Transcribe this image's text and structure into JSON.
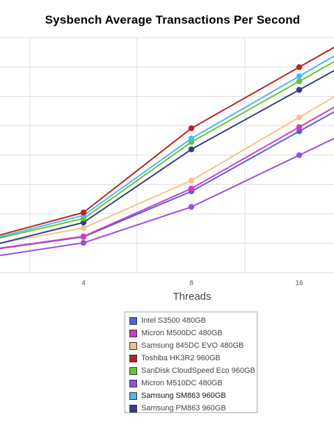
{
  "chart_data": {
    "type": "line",
    "title": "Sysbench Average Transactions Per Second",
    "xlabel": "Threads",
    "ylabel": "",
    "x": [
      2,
      4,
      8,
      16
    ],
    "x_tick_labels": [
      "4",
      "8",
      "16"
    ],
    "grid": true,
    "legend_placement": "bottom",
    "series": [
      {
        "name": "Intel S3500 480GB",
        "color": "#4f63e0",
        "values": [
          47.3,
          61.6,
          105.2,
          162.8
        ]
      },
      {
        "name": "Micron M500DC 480GB",
        "color": "#d33bc4",
        "values": [
          47.5,
          62.1,
          107.9,
          166.8
        ]
      },
      {
        "name": "Samsung 845DC EVO 480GB",
        "color": "#f2c38a",
        "values": [
          51.6,
          70.1,
          115.6,
          176.2
        ]
      },
      {
        "name": "Toshiba HK3R2 960GB",
        "color": "#b82424",
        "values": [
          57.1,
          85.0,
          165.7,
          224.3
        ]
      },
      {
        "name": "SanDisk CloudSpeed Eco 960GB",
        "color": "#6bc236",
        "values": [
          55.2,
          79.2,
          152.5,
          210.7
        ]
      },
      {
        "name": "Micron M510DC 480GB",
        "color": "#9b4de6",
        "values": [
          40.3,
          55.9,
          90.3,
          139.9
        ]
      },
      {
        "name": "Samsung SM863 960GB",
        "color": "#4ab9ec",
        "values": [
          55.8,
          82.2,
          155.9,
          215.6
        ]
      },
      {
        "name": "Samsung PM863 960GB",
        "color": "#2f3f85",
        "values": [
          49.6,
          75.4,
          145.5,
          202.5
        ]
      }
    ]
  },
  "axis": {
    "x_title": "Threads"
  },
  "colors": {
    "grid": "#dddddd",
    "text": "#444444"
  }
}
